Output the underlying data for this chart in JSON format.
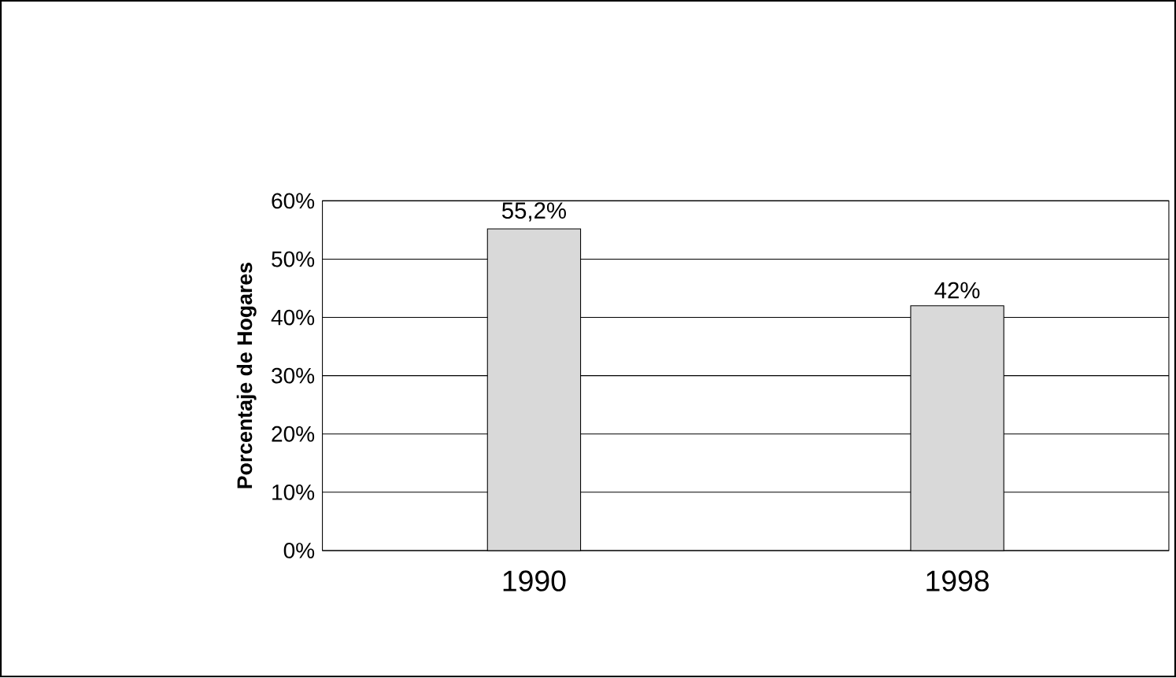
{
  "chart_data": {
    "type": "bar",
    "ylabel": "Porcentaje de Hogares",
    "categories": [
      "1990",
      "1998"
    ],
    "values": [
      55.2,
      42
    ],
    "value_labels": [
      "55,2%",
      "42%"
    ],
    "color": "#d9d9d9",
    "ylim": [
      0,
      60
    ],
    "yticks": [
      {
        "value": 0,
        "label": "0%"
      },
      {
        "value": 10,
        "label": "10%"
      },
      {
        "value": 20,
        "label": "20%"
      },
      {
        "value": 30,
        "label": "30%"
      },
      {
        "value": 40,
        "label": "40%"
      },
      {
        "value": 50,
        "label": "50%"
      },
      {
        "value": 60,
        "label": "60%"
      }
    ],
    "grid": "y"
  }
}
